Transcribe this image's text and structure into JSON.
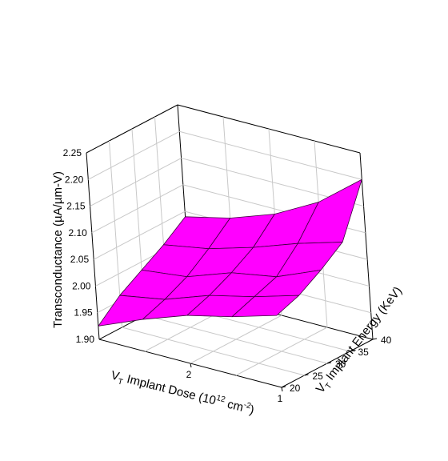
{
  "chart_data": {
    "type": "surface",
    "title": "",
    "zlabel": "Transconductance (µA/µm-V)",
    "xlabel": {
      "prefix": "V",
      "sub": "T",
      "middle": " Implant Dose (10",
      "sup": "12",
      "unit": " cm",
      "unit_sup": "-2",
      "suffix": ")"
    },
    "ylabel": {
      "prefix": "V",
      "sub": "T",
      "middle": " Implant Energy (KeV)"
    },
    "dose_ticks": [
      "1",
      "2"
    ],
    "energy_ticks": [
      "20",
      "25",
      "30",
      "35",
      "40"
    ],
    "z_ticks": [
      "1.90",
      "1.95",
      "2.00",
      "2.05",
      "2.10",
      "2.15",
      "2.20",
      "2.25"
    ],
    "zlim": [
      1.9,
      2.25
    ],
    "dose": [
      1,
      1.5,
      2,
      2.5,
      3
    ],
    "energy": [
      20,
      25,
      30,
      35,
      40
    ],
    "z": [
      [
        2.035,
        2.05,
        2.075,
        2.105,
        2.2
      ],
      [
        2.01,
        2.025,
        2.04,
        2.08,
        2.135
      ],
      [
        1.99,
        2.005,
        2.025,
        2.05,
        2.09
      ],
      [
        1.96,
        1.975,
        1.995,
        2.025,
        2.06
      ],
      [
        1.925,
        1.96,
        1.985,
        2.01,
        2.04
      ]
    ],
    "surface_color": "#ff00ff",
    "grid": true
  }
}
